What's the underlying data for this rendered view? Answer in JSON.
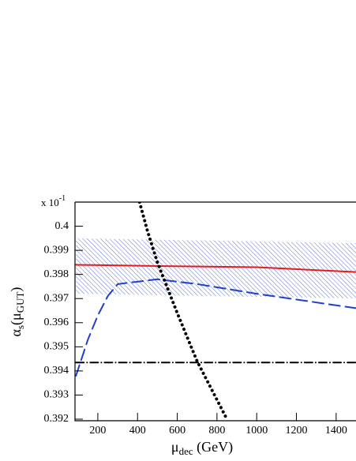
{
  "chart_data": {
    "type": "line",
    "scale_note": {
      "base": "x 10",
      "exponent": "-1"
    },
    "x_label": [
      "μ",
      "dec",
      " (GeV)"
    ],
    "y_label": [
      "α",
      "s",
      "(μ",
      "GUT",
      ")"
    ],
    "xlim": [
      85,
      1500
    ],
    "ylim": [
      0.392,
      0.401
    ],
    "xticks": [
      200,
      400,
      600,
      800,
      1000,
      1200,
      1400
    ],
    "yticks": [
      0.392,
      0.393,
      0.394,
      0.395,
      0.396,
      0.397,
      0.398,
      0.399,
      0.4
    ],
    "band": {
      "color": "#3a4fc0",
      "x": [
        90,
        1500
      ],
      "upper": [
        0.3995,
        0.3993
      ],
      "lower": [
        0.3972,
        0.397
      ]
    },
    "series": [
      {
        "color": "#e31b23",
        "style": "solid",
        "x": [
          90,
          500,
          1000,
          1500
        ],
        "values": [
          0.3984,
          0.39835,
          0.3983,
          0.3981
        ]
      },
      {
        "color": "#1f3fd0",
        "style": "dashed",
        "x": [
          90,
          150,
          200,
          250,
          300,
          400,
          500,
          700,
          1000,
          1500
        ],
        "values": [
          0.3938,
          0.3953,
          0.3963,
          0.3971,
          0.3976,
          0.3977,
          0.3978,
          0.3976,
          0.3972,
          0.3966
        ]
      },
      {
        "color": "#000000",
        "style": "dotted",
        "x": [
          410,
          450,
          500,
          600,
          700,
          800,
          850
        ],
        "values": [
          0.401,
          0.3998,
          0.3985,
          0.3964,
          0.3944,
          0.3928,
          0.392
        ]
      },
      {
        "color": "#000000",
        "style": "dashdot",
        "x": [
          90,
          1500
        ],
        "values": [
          0.39435,
          0.39435
        ]
      }
    ]
  }
}
